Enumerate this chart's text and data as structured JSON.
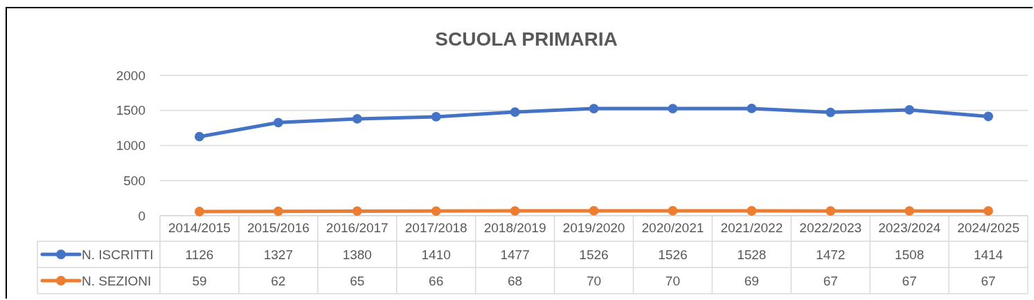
{
  "chart_data": {
    "type": "line",
    "title": "SCUOLA PRIMARIA",
    "categories": [
      "2014/2015",
      "2015/2016",
      "2016/2017",
      "2017/2018",
      "2018/2019",
      "2019/2020",
      "2020/2021",
      "2021/2022",
      "2022/2023",
      "2023/2024",
      "2024/2025"
    ],
    "series": [
      {
        "name": "N. ISCRITTI",
        "color": "#4472c4",
        "values": [
          1126,
          1327,
          1380,
          1410,
          1477,
          1526,
          1526,
          1528,
          1472,
          1508,
          1414
        ]
      },
      {
        "name": "N. SEZIONI",
        "color": "#ed7d31",
        "values": [
          59,
          62,
          65,
          66,
          68,
          70,
          70,
          69,
          67,
          67,
          67
        ]
      }
    ],
    "ylim": [
      0,
      2000
    ],
    "yticks": [
      0,
      500,
      1000,
      1500,
      2000
    ],
    "grid": "y",
    "legend": "bottom",
    "marker": "circle",
    "line_style": "solid",
    "data_labels": true
  }
}
